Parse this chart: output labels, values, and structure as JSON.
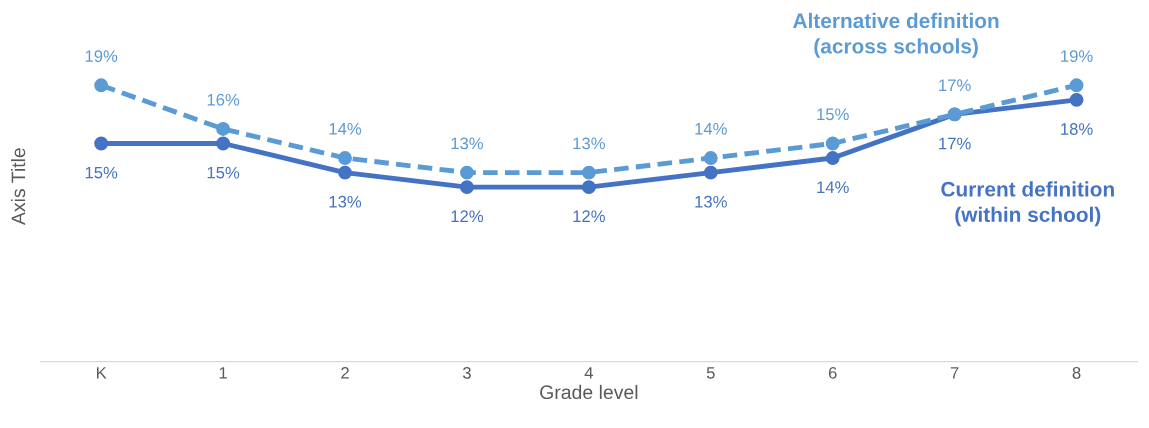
{
  "chart_data": {
    "type": "line",
    "xlabel": "Grade level",
    "ylabel": "Axis Title",
    "categories": [
      "K",
      "1",
      "2",
      "3",
      "4",
      "5",
      "6",
      "7",
      "8"
    ],
    "tick_labels": "x",
    "grid": false,
    "legend": false,
    "marker": "circle",
    "series": [
      {
        "name": "Current definition\n(within school)",
        "color": "#4472c4",
        "line_style": "solid",
        "values": [
          15,
          15,
          13,
          12,
          12,
          13,
          14,
          17,
          18
        ],
        "value_labels": [
          "15%",
          "15%",
          "13%",
          "12%",
          "12%",
          "13%",
          "14%",
          "17%",
          "18%"
        ]
      },
      {
        "name": "Alternative definition\n(across schools)",
        "color": "#5b9bd5",
        "line_style": "dashed",
        "values": [
          19,
          16,
          14,
          13,
          13,
          14,
          15,
          17,
          19
        ],
        "value_labels": [
          "19%",
          "16%",
          "14%",
          "13%",
          "13%",
          "14%",
          "15%",
          "17%",
          "19%"
        ]
      }
    ]
  }
}
